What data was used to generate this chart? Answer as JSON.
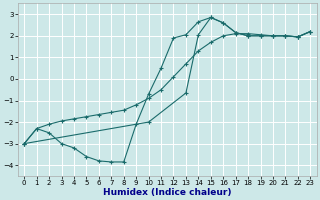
{
  "xlabel": "Humidex (Indice chaleur)",
  "bg_color": "#cde8e8",
  "grid_color": "#ffffff",
  "line_color": "#1a6b6b",
  "xlim": [
    -0.5,
    23.5
  ],
  "ylim": [
    -4.5,
    3.5
  ],
  "yticks": [
    -4,
    -3,
    -2,
    -1,
    0,
    1,
    2,
    3
  ],
  "xticks": [
    0,
    1,
    2,
    3,
    4,
    5,
    6,
    7,
    8,
    9,
    10,
    11,
    12,
    13,
    14,
    15,
    16,
    17,
    18,
    19,
    20,
    21,
    22,
    23
  ],
  "line1_x": [
    0,
    1,
    2,
    3,
    4,
    5,
    6,
    7,
    8,
    9,
    10,
    11,
    12,
    13,
    14,
    15,
    16,
    17,
    18,
    19,
    20,
    21,
    22,
    23
  ],
  "line1_y": [
    -3.0,
    -2.3,
    -2.5,
    -3.0,
    -3.2,
    -3.6,
    -3.8,
    -3.85,
    -3.85,
    -2.1,
    -0.7,
    0.5,
    1.9,
    2.05,
    2.65,
    2.85,
    2.6,
    2.15,
    2.0,
    2.0,
    2.0,
    2.0,
    1.95,
    2.2
  ],
  "line2_x": [
    0,
    1,
    2,
    3,
    4,
    5,
    6,
    7,
    8,
    9,
    10,
    11,
    12,
    13,
    14,
    15,
    16,
    17,
    18,
    19,
    20,
    21,
    22,
    23
  ],
  "line2_y": [
    -3.0,
    -2.3,
    -2.1,
    -1.95,
    -1.85,
    -1.75,
    -1.65,
    -1.55,
    -1.45,
    -1.2,
    -0.9,
    -0.5,
    0.1,
    0.7,
    1.3,
    1.7,
    2.0,
    2.1,
    2.1,
    2.05,
    2.0,
    2.0,
    1.95,
    2.2
  ],
  "line3_x": [
    0,
    10,
    13,
    14,
    15,
    16,
    17,
    18,
    19,
    20,
    21,
    22,
    23
  ],
  "line3_y": [
    -3.0,
    -2.0,
    -0.65,
    2.05,
    2.85,
    2.6,
    2.15,
    2.0,
    2.0,
    2.0,
    2.0,
    1.95,
    2.2
  ],
  "xlabel_color": "#00008b",
  "xlabel_fontsize": 6.5,
  "tick_fontsize": 5,
  "lw": 0.8,
  "ms": 2.5
}
